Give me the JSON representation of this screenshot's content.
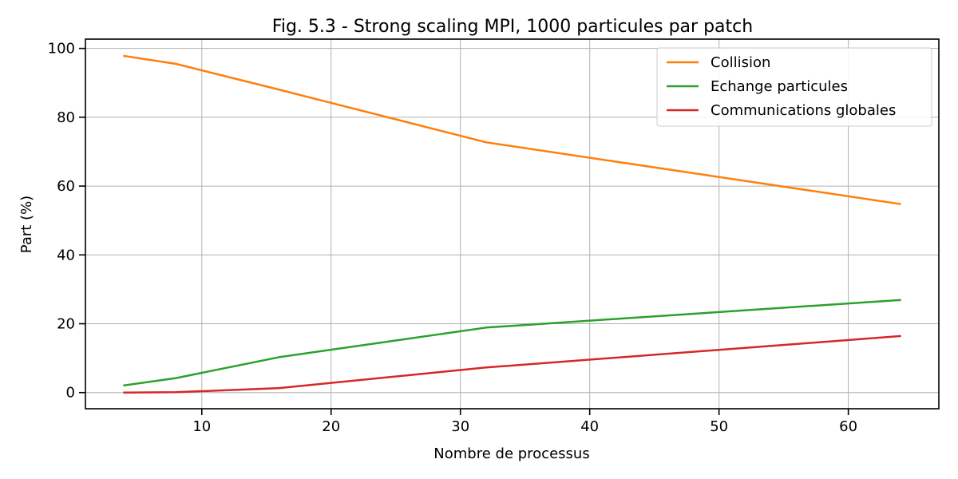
{
  "chart_data": {
    "type": "line",
    "title": "Fig. 5.3 - Strong scaling MPI, 1000 particules par patch",
    "xlabel": "Nombre de processus",
    "ylabel": "Part (%)",
    "xlim": [
      1,
      67
    ],
    "ylim": [
      -4.7,
      102.7
    ],
    "xticks": [
      10,
      20,
      30,
      40,
      50,
      60
    ],
    "yticks": [
      0,
      20,
      40,
      60,
      80,
      100
    ],
    "grid": true,
    "legend_position": "top-right",
    "x": [
      4,
      8,
      16,
      32,
      64
    ],
    "series": [
      {
        "name": "Collision",
        "color": "#ff7f0e",
        "values": [
          97.8,
          95.5,
          88.0,
          72.7,
          54.8
        ]
      },
      {
        "name": "Echange particules",
        "color": "#2ca02c",
        "values": [
          2.1,
          4.2,
          10.3,
          18.9,
          26.9
        ]
      },
      {
        "name": "Communications globales",
        "color": "#d62728",
        "values": [
          0.0,
          0.1,
          1.3,
          7.3,
          16.4
        ]
      }
    ]
  }
}
